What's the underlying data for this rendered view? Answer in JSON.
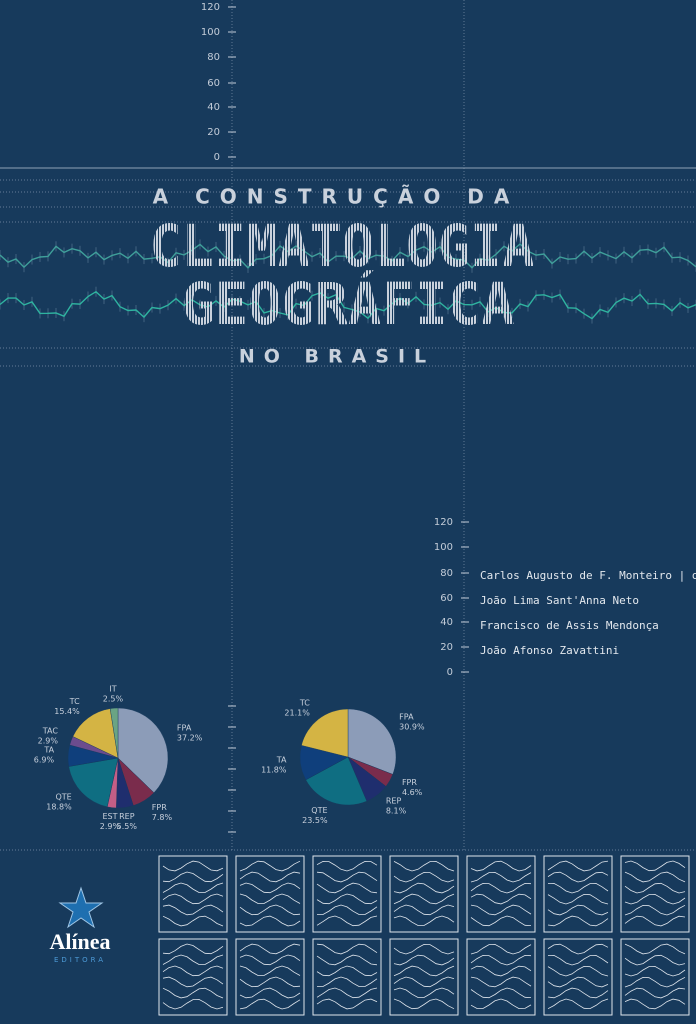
{
  "top_scale": [
    120,
    100,
    80,
    60,
    40,
    20,
    0
  ],
  "title": {
    "line1": "A CONSTRUÇÃO DA",
    "line2": "CLIMATOLOGIA",
    "line3": "GEOGRÁFICA",
    "line4": "NO BRASIL"
  },
  "side_scale": [
    120,
    100,
    80,
    60,
    40,
    20,
    0
  ],
  "authors": [
    "Carlos Augusto de F. Monteiro | org.",
    "João Lima Sant'Anna Neto",
    "Francisco de Assis Mendonça",
    "João Afonso Zavattini"
  ],
  "chart_data": [
    {
      "type": "pie",
      "categories": [
        "FPA",
        "FPR",
        "REP",
        "EST",
        "QTE",
        "TA",
        "TAC",
        "TC",
        "IT"
      ],
      "values": [
        37.2,
        7.8,
        5.5,
        2.9,
        18.8,
        6.9,
        2.9,
        15.4,
        2.5
      ],
      "value_labels": [
        "37.2%",
        "7.8%",
        "5.5%",
        "2.9%",
        "18.8%",
        "6.9%",
        "2.9%",
        "15.4%",
        "2.5%"
      ],
      "colors": [
        "#8c9cb8",
        "#7a2c4c",
        "#1f2e6e",
        "#c45e86",
        "#0f6e82",
        "#0f3f7c",
        "#6c4c8e",
        "#d4b444",
        "#6aa484"
      ]
    },
    {
      "type": "pie",
      "categories": [
        "FPA",
        "FPR",
        "REP",
        "QTE",
        "TA",
        "TC"
      ],
      "values": [
        30.9,
        4.6,
        8.1,
        23.5,
        11.8,
        21.1
      ],
      "value_labels": [
        "30.9%",
        "4.6%",
        "8.1%",
        "23.5%",
        "11.8%",
        "21.1%"
      ],
      "colors": [
        "#8c9cb8",
        "#7a2c4c",
        "#1f2e6e",
        "#0f6e82",
        "#0f3f7c",
        "#d4b444"
      ]
    }
  ],
  "publisher": {
    "name": "Alínea",
    "label": "EDITORA"
  }
}
